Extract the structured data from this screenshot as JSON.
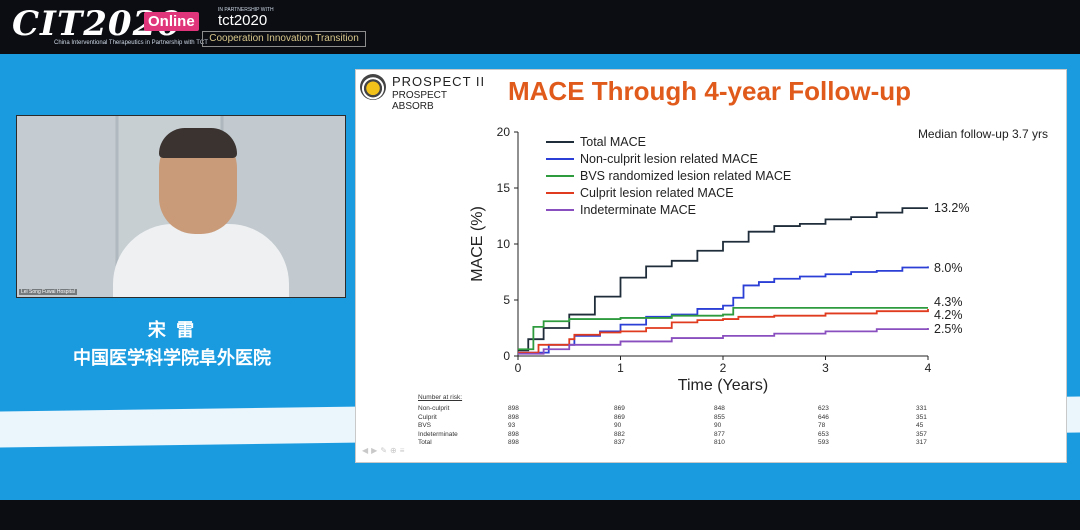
{
  "header": {
    "brand": "CIT2020",
    "brand_sub": "China Interventional Therapeutics in Partnership with TCT",
    "online": "Online",
    "partner_prefix": "IN PARTNERSHIP WITH",
    "partner": "tct2020",
    "tagline": "Cooperation Innovation Transition"
  },
  "webcam": {
    "caption": "Lei Song Fuwai Hospital"
  },
  "speaker": {
    "name": "宋 雷",
    "affiliation": "中国医学科学院阜外医院"
  },
  "slide": {
    "logo_line1": "PROSPECT II",
    "logo_line2": "PROSPECT ABSORB",
    "title": "MACE Through 4-year Follow-up",
    "note": "Median follow-up 3.7 yrs",
    "icons": [
      "prev-icon",
      "next-icon",
      "pen-icon",
      "zoom-icon",
      "menu-icon"
    ]
  },
  "chart_data": {
    "type": "line",
    "title": "MACE Through 4-year Follow-up",
    "xlabel": "Time (Years)",
    "ylabel": "MACE (%)",
    "xlim": [
      0,
      4
    ],
    "ylim": [
      0,
      20
    ],
    "xticks": [
      0,
      1,
      2,
      3,
      4
    ],
    "yticks": [
      0,
      5,
      10,
      15,
      20
    ],
    "legend_position": "top-left",
    "grid": false,
    "series": [
      {
        "name": "Total MACE",
        "color": "#1f2d3a",
        "end_label": "13.2%",
        "points": [
          [
            0,
            0.5
          ],
          [
            0.1,
            1.5
          ],
          [
            0.25,
            2.5
          ],
          [
            0.5,
            3.7
          ],
          [
            0.75,
            5.3
          ],
          [
            1.0,
            7.0
          ],
          [
            1.25,
            8.0
          ],
          [
            1.5,
            8.5
          ],
          [
            1.75,
            9.4
          ],
          [
            2.0,
            10.2
          ],
          [
            2.25,
            11.1
          ],
          [
            2.5,
            11.6
          ],
          [
            2.75,
            11.8
          ],
          [
            3.0,
            12.2
          ],
          [
            3.25,
            12.4
          ],
          [
            3.5,
            12.8
          ],
          [
            3.75,
            13.2
          ],
          [
            4.0,
            13.2
          ]
        ]
      },
      {
        "name": "Non-culprit lesion related MACE",
        "color": "#2b3fd6",
        "end_label": "8.0%",
        "points": [
          [
            0,
            0.3
          ],
          [
            0.3,
            1.0
          ],
          [
            0.55,
            1.8
          ],
          [
            0.8,
            2.2
          ],
          [
            1.0,
            2.8
          ],
          [
            1.25,
            3.5
          ],
          [
            1.5,
            3.7
          ],
          [
            1.75,
            4.2
          ],
          [
            2.0,
            4.5
          ],
          [
            2.1,
            5.2
          ],
          [
            2.2,
            6.3
          ],
          [
            2.35,
            6.6
          ],
          [
            2.5,
            6.9
          ],
          [
            2.75,
            7.1
          ],
          [
            3.0,
            7.3
          ],
          [
            3.25,
            7.5
          ],
          [
            3.5,
            7.6
          ],
          [
            3.75,
            7.9
          ],
          [
            4.0,
            8.0
          ]
        ]
      },
      {
        "name": "BVS randomized lesion related MACE",
        "color": "#2f9b3f",
        "end_label": "4.3%",
        "points": [
          [
            0,
            0.6
          ],
          [
            0.15,
            2.6
          ],
          [
            0.25,
            3.1
          ],
          [
            0.5,
            3.3
          ],
          [
            1.0,
            3.4
          ],
          [
            1.5,
            3.6
          ],
          [
            2.0,
            3.7
          ],
          [
            2.1,
            4.3
          ],
          [
            3.0,
            4.3
          ],
          [
            4.0,
            4.3
          ]
        ]
      },
      {
        "name": "Culprit lesion related MACE",
        "color": "#e03a1f",
        "end_label": "4.2%",
        "points": [
          [
            0,
            0.3
          ],
          [
            0.2,
            1.0
          ],
          [
            0.5,
            1.5
          ],
          [
            0.55,
            1.9
          ],
          [
            0.8,
            2.1
          ],
          [
            1.0,
            2.2
          ],
          [
            1.25,
            2.5
          ],
          [
            1.5,
            3.0
          ],
          [
            1.75,
            3.2
          ],
          [
            2.0,
            3.3
          ],
          [
            2.15,
            3.5
          ],
          [
            2.5,
            3.6
          ],
          [
            3.0,
            3.8
          ],
          [
            3.5,
            4.0
          ],
          [
            4.0,
            4.2
          ]
        ]
      },
      {
        "name": "Indeterminate MACE",
        "color": "#8a4fbf",
        "end_label": "2.5%",
        "points": [
          [
            0,
            0.2
          ],
          [
            0.25,
            0.6
          ],
          [
            0.5,
            1.0
          ],
          [
            1.0,
            1.3
          ],
          [
            1.5,
            1.6
          ],
          [
            2.0,
            1.8
          ],
          [
            2.5,
            2.0
          ],
          [
            3.0,
            2.2
          ],
          [
            3.5,
            2.4
          ],
          [
            4.0,
            2.5
          ]
        ]
      }
    ],
    "risk_table": {
      "title": "Number at risk:",
      "rows": [
        {
          "label": "Non-culprit",
          "values": [
            "898",
            "869",
            "848",
            "623",
            "331"
          ]
        },
        {
          "label": "Culprit",
          "values": [
            "898",
            "869",
            "855",
            "646",
            "351"
          ]
        },
        {
          "label": "BVS",
          "values": [
            "93",
            "90",
            "90",
            "78",
            "45"
          ]
        },
        {
          "label": "Indeterminate",
          "values": [
            "898",
            "882",
            "877",
            "653",
            "357"
          ]
        },
        {
          "label": "Total",
          "values": [
            "898",
            "837",
            "810",
            "593",
            "317"
          ]
        }
      ]
    }
  }
}
